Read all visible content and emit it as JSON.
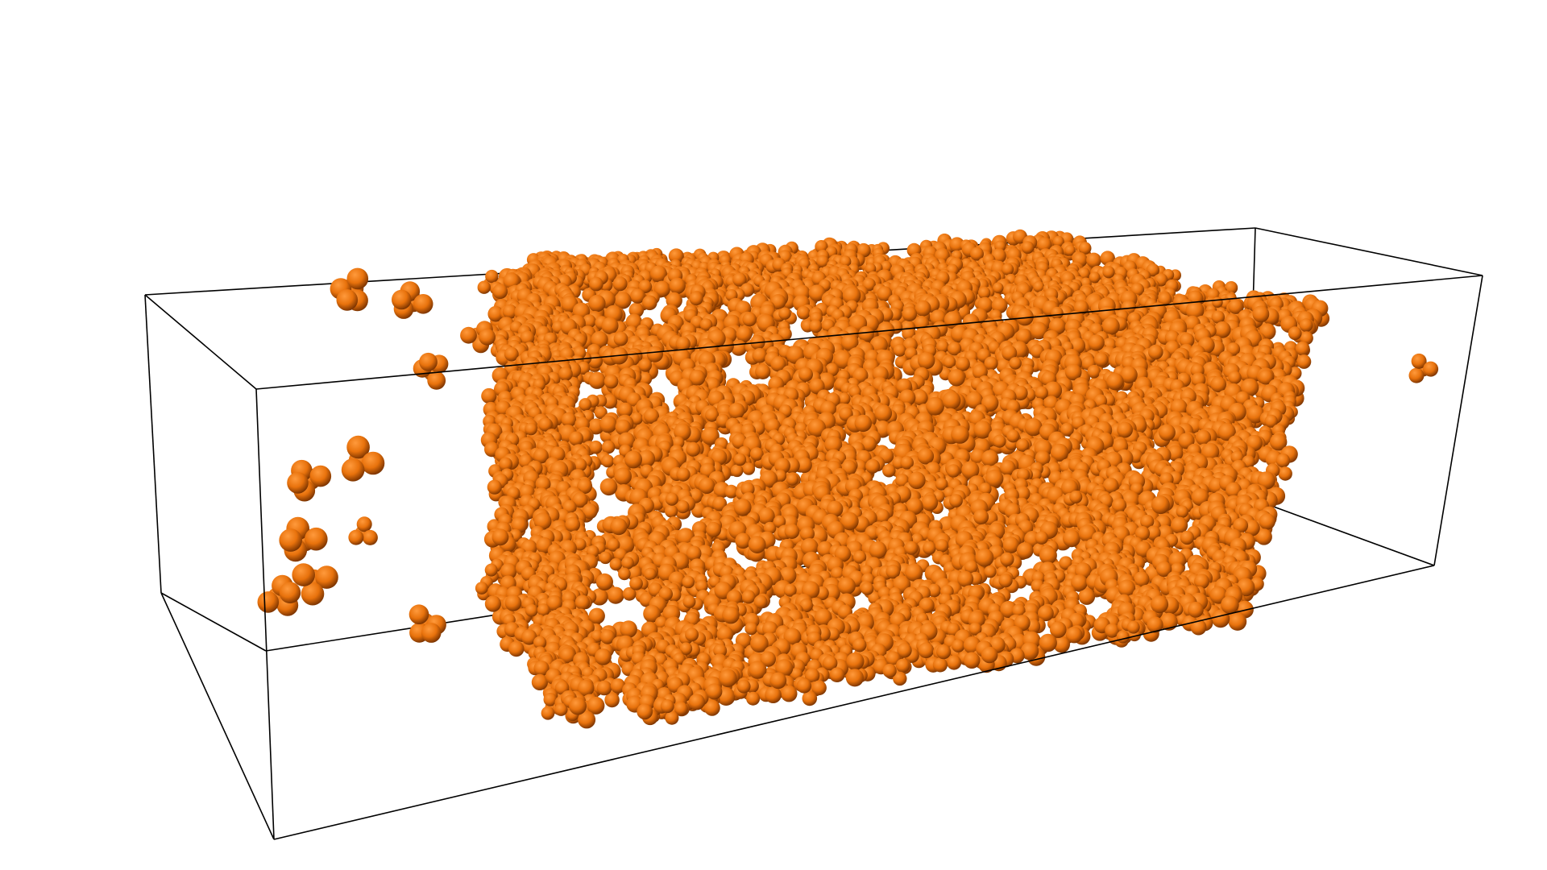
{
  "render": {
    "background_color": "#ffffff",
    "box_edge_color": "#000000",
    "molecule_color": "#e8720c",
    "molecule_shade_color": "#7a3300",
    "molecule_highlight_color": "#ff9a3c",
    "molecule_shape": "tetrahedral-cluster-of-spheres"
  }
}
